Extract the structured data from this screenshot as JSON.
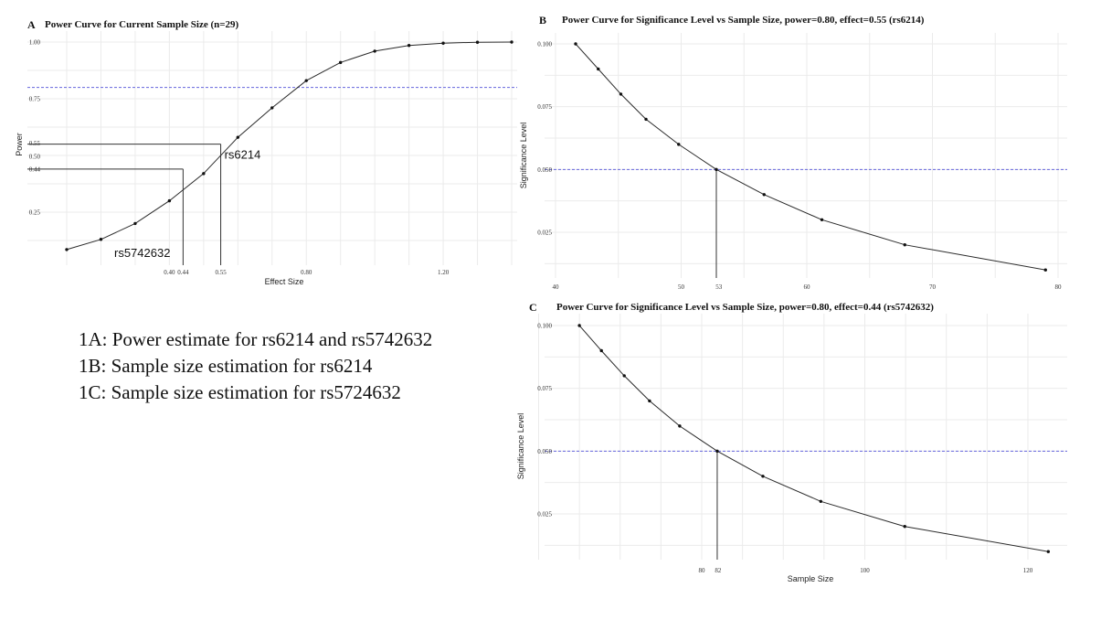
{
  "chart_data": [
    {
      "id": "A",
      "type": "line",
      "panel_letter": "A",
      "title": "Power Curve for Current Sample Size (n=29)",
      "xlabel": "Effect Size",
      "ylabel": "Power",
      "xlim": [
        0.0,
        1.4
      ],
      "ylim": [
        0.07,
        1.0
      ],
      "x_ticks": [
        0.4,
        0.44,
        0.55,
        0.8,
        1.2
      ],
      "x_tick_labels": [
        "0.40",
        "0.44",
        "0.55",
        "0.80",
        "1.20"
      ],
      "y_ticks": [
        0.25,
        0.44,
        0.5,
        0.55,
        0.75,
        1.0
      ],
      "y_tick_labels": [
        "0.25",
        "0.44",
        "0.50",
        "0.55",
        "0.75",
        "1.00"
      ],
      "x_grid": [
        0.1,
        0.2,
        0.3,
        0.4,
        0.5,
        0.6,
        0.7,
        0.8,
        0.9,
        1.0,
        1.1,
        1.2,
        1.3,
        1.4
      ],
      "y_grid": [
        0.125,
        0.25,
        0.375,
        0.5,
        0.625,
        0.75,
        0.875,
        1.0
      ],
      "grid": true,
      "reference_line": {
        "axis": "y",
        "value": 0.8,
        "color": "#6666dd",
        "style": "dashed"
      },
      "series": [
        {
          "x": [
            0.1,
            0.2,
            0.3,
            0.4,
            0.5,
            0.6,
            0.7,
            0.8,
            0.9,
            1.0,
            1.1,
            1.2,
            1.3,
            1.4
          ],
          "y": [
            0.085,
            0.13,
            0.2,
            0.3,
            0.42,
            0.58,
            0.71,
            0.83,
            0.91,
            0.96,
            0.985,
            0.995,
            0.999,
            1.0
          ]
        }
      ],
      "annotations": [
        {
          "label": "rs6214",
          "x": 0.55,
          "y": 0.55
        },
        {
          "label": "rs5742632",
          "x": 0.44,
          "y": 0.44
        }
      ]
    },
    {
      "id": "B",
      "type": "line",
      "panel_letter": "B",
      "title": "Power Curve for Significance Level vs Sample Size, power=0.80, effect=0.55 (rs6214)",
      "xlabel": "",
      "ylabel": "Significance Level",
      "xlim": [
        40,
        80
      ],
      "ylim": [
        0.0085,
        0.1
      ],
      "x_ticks": [
        40,
        50,
        53,
        60,
        70,
        80
      ],
      "x_tick_labels": [
        "40",
        "50",
        "53",
        "60",
        "70",
        "80"
      ],
      "y_ticks": [
        0.025,
        0.05,
        0.075,
        0.1
      ],
      "y_tick_labels": [
        "0.025",
        "0.050",
        "0.075",
        "0.100"
      ],
      "x_grid": [
        40,
        45,
        50,
        55,
        60,
        65,
        70,
        75,
        80
      ],
      "y_grid": [
        0.0125,
        0.025,
        0.0375,
        0.05,
        0.0625,
        0.075,
        0.0875,
        0.1
      ],
      "grid": true,
      "reference_line": {
        "axis": "y",
        "value": 0.05,
        "color": "#6666dd",
        "style": "dashed"
      },
      "series": [
        {
          "x": [
            41.6,
            43.4,
            45.2,
            47.2,
            49.8,
            52.8,
            56.6,
            61.2,
            67.8,
            79.0
          ],
          "y": [
            0.1,
            0.09,
            0.08,
            0.07,
            0.06,
            0.05,
            0.04,
            0.03,
            0.02,
            0.01
          ]
        }
      ],
      "annotations": [
        {
          "label": "",
          "x": 52.8,
          "y": 0.05
        }
      ]
    },
    {
      "id": "C",
      "type": "line",
      "panel_letter": "C",
      "title": "Power Curve for Significance Level vs Sample Size, power=0.80, effect=0.44 (rs5742632)",
      "xlabel": "Sample Size",
      "ylabel": "Significance Level",
      "xlim": [
        60,
        123
      ],
      "ylim": [
        0.0082,
        0.1015
      ],
      "x_ticks": [
        80,
        82,
        100,
        120
      ],
      "x_tick_labels": [
        "80",
        "82",
        "100",
        "120"
      ],
      "y_ticks": [
        0.025,
        0.05,
        0.075,
        0.1
      ],
      "y_tick_labels": [
        "0.025",
        "0.050",
        "0.075",
        "0.100"
      ],
      "x_grid": [
        60,
        65,
        70,
        75,
        80,
        85,
        90,
        95,
        100,
        105,
        110,
        115,
        120
      ],
      "y_grid": [
        0.0125,
        0.025,
        0.0375,
        0.05,
        0.0625,
        0.075,
        0.0875,
        0.1
      ],
      "grid": true,
      "reference_line": {
        "axis": "y",
        "value": 0.05,
        "color": "#6666dd",
        "style": "dashed"
      },
      "series": [
        {
          "x": [
            65.0,
            67.7,
            70.5,
            73.6,
            77.3,
            81.9,
            87.5,
            94.6,
            104.9,
            122.5
          ],
          "y": [
            0.1,
            0.09,
            0.08,
            0.07,
            0.06,
            0.05,
            0.04,
            0.03,
            0.02,
            0.01
          ]
        }
      ],
      "annotations": [
        {
          "label": "",
          "x": 81.9,
          "y": 0.05
        }
      ]
    }
  ],
  "caption": {
    "line1": "1A: Power estimate for rs6214 and rs5742632",
    "line2": "1B: Sample size estimation for rs6214",
    "line3": "1C: Sample size estimation for rs5724632"
  }
}
